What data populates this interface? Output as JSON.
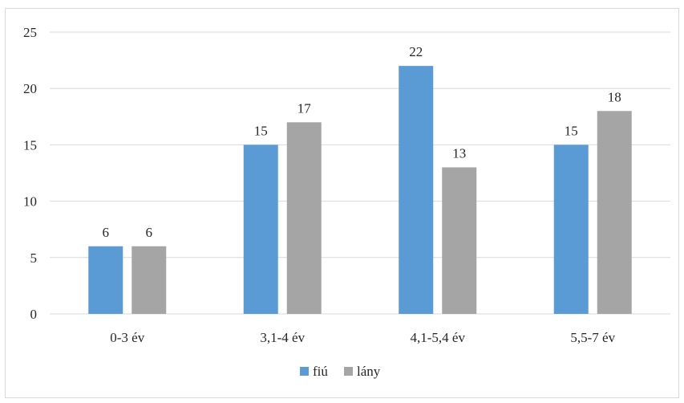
{
  "chart_data": {
    "type": "bar",
    "title": "",
    "xlabel": "",
    "ylabel": "",
    "categories": [
      "0-3 év",
      "3,1-4 év",
      "4,1-5,4 év",
      "5,5-7 év"
    ],
    "series": [
      {
        "name": "fiú",
        "values": [
          6,
          15,
          22,
          15
        ],
        "color": "#5b9bd5"
      },
      {
        "name": "lány",
        "values": [
          6,
          17,
          13,
          18
        ],
        "color": "#a5a5a5"
      }
    ],
    "ylim": [
      0,
      25
    ],
    "yticks": [
      0,
      5,
      10,
      15,
      20,
      25
    ],
    "grid": true,
    "legend": "bottom",
    "data_labels": true
  }
}
